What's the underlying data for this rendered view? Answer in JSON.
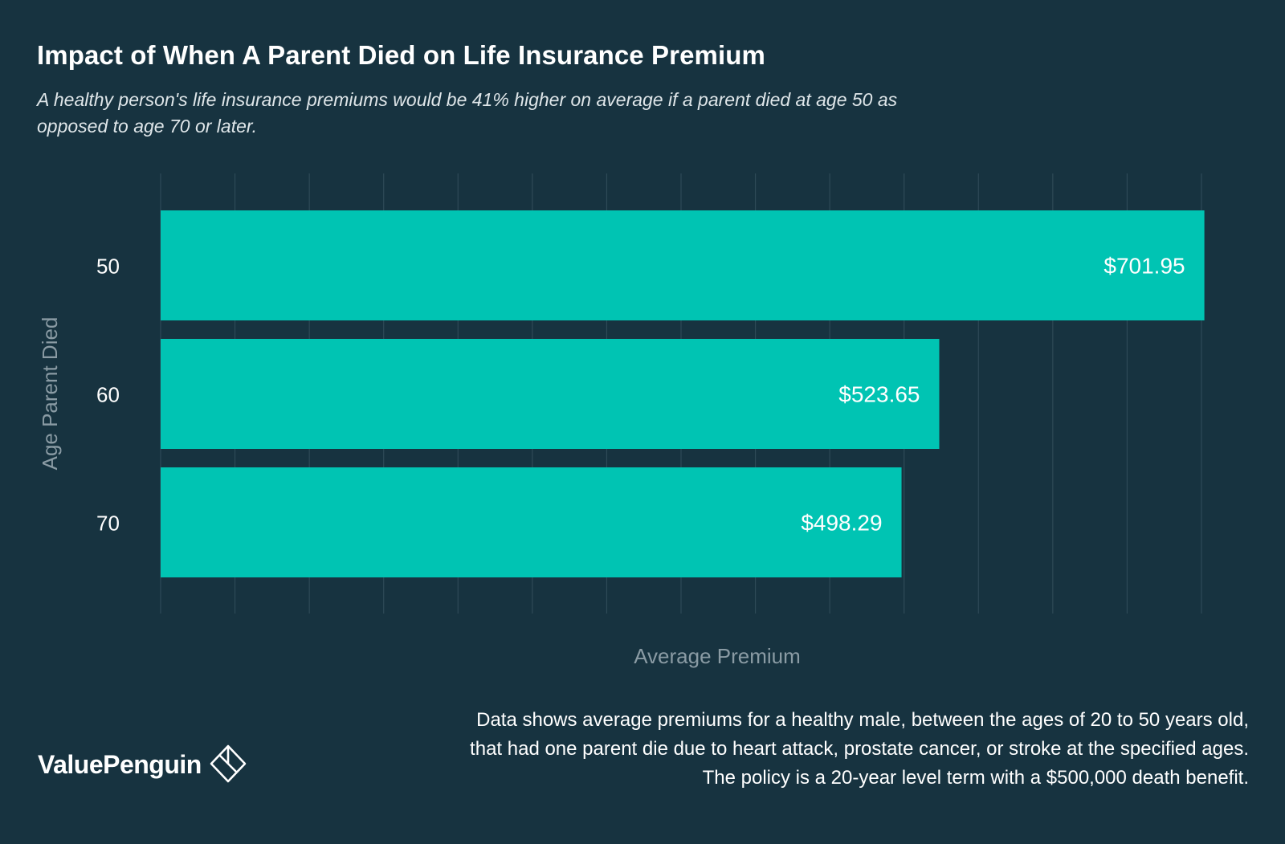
{
  "header": {
    "title": "Impact of When A Parent Died on Life Insurance Premium",
    "subtitle": "A healthy person's life insurance premiums would be 41% higher on average if a parent died at age 50 as opposed to age 70 or later."
  },
  "chart_data": {
    "type": "bar",
    "orientation": "horizontal",
    "categories": [
      "50",
      "60",
      "70"
    ],
    "values": [
      701.95,
      523.65,
      498.29
    ],
    "value_labels": [
      "$701.95",
      "$523.65",
      "$498.29"
    ],
    "xlabel": "Average Premium",
    "ylabel": "Age Parent Died",
    "xlim": [
      0,
      700
    ],
    "grid": true,
    "colors": {
      "bar": "#00c4b3",
      "grid": "#2e4a57",
      "axis_title": "#8a9ba4",
      "background": "#173340"
    }
  },
  "footnote": {
    "lines": [
      "Data shows average premiums for a healthy male, between the ages of 20 to 50 years old,",
      "that had one parent die due to heart attack, prostate cancer, or stroke at the specified ages.",
      "The policy is a 20-year level term with a $500,000 death benefit."
    ]
  },
  "brand": {
    "name": "ValuePenguin",
    "icon": "valuepenguin-logo-icon"
  }
}
